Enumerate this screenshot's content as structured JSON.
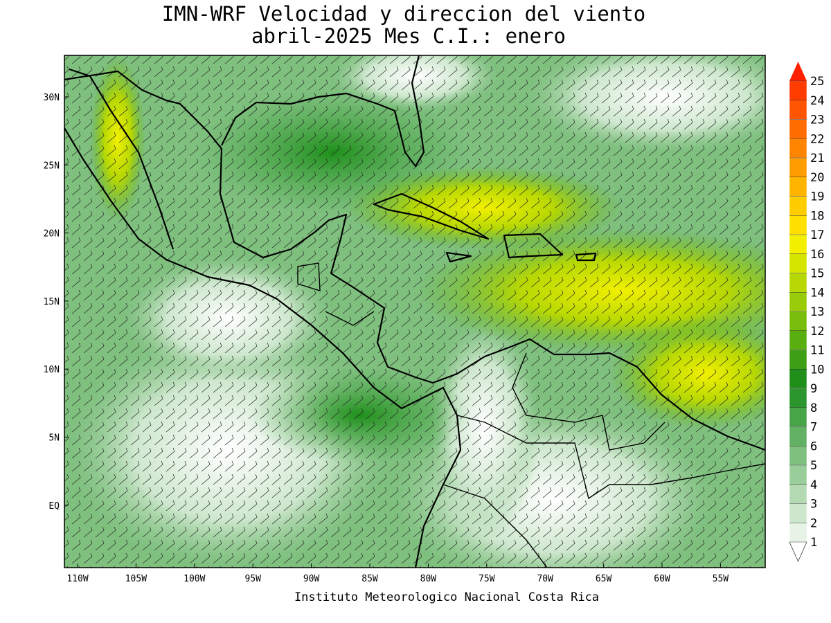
{
  "title": [
    "IMN-WRF Velocidad y direccion del viento",
    "abril-2025 Mes C.I.: enero"
  ],
  "lon_ticks": [
    "110W",
    "105W",
    "100W",
    "95W",
    "90W",
    "85W",
    "80W",
    "75W",
    "70W",
    "65W",
    "60W",
    "55W"
  ],
  "lat_ticks": [
    "30N",
    "25N",
    "20N",
    "15N",
    "10N",
    "5N",
    "EQ"
  ],
  "colorbar": {
    "labels": [
      1,
      2,
      3,
      4,
      5,
      6,
      7,
      8,
      9,
      10,
      11,
      12,
      13,
      14,
      15,
      16,
      17,
      18,
      19,
      20,
      21,
      22,
      23,
      24,
      25
    ],
    "colors": [
      "#e6f3e6",
      "#cde7cd",
      "#b3dab3",
      "#99cd99",
      "#7fc07f",
      "#63b263",
      "#47a447",
      "#2b962b",
      "#1f8f1a",
      "#3c9f14",
      "#5aaf10",
      "#79bd0c",
      "#98cb08",
      "#b7d804",
      "#d6e500",
      "#f2f000",
      "#ffe000",
      "#ffcc00",
      "#ffb400",
      "#ff9c00",
      "#ff8400",
      "#ff6c00",
      "#ff5400",
      "#ff3c00",
      "#ff2000"
    ]
  },
  "footer": "Instituto Meteorologico Nacional Costa Rica"
}
